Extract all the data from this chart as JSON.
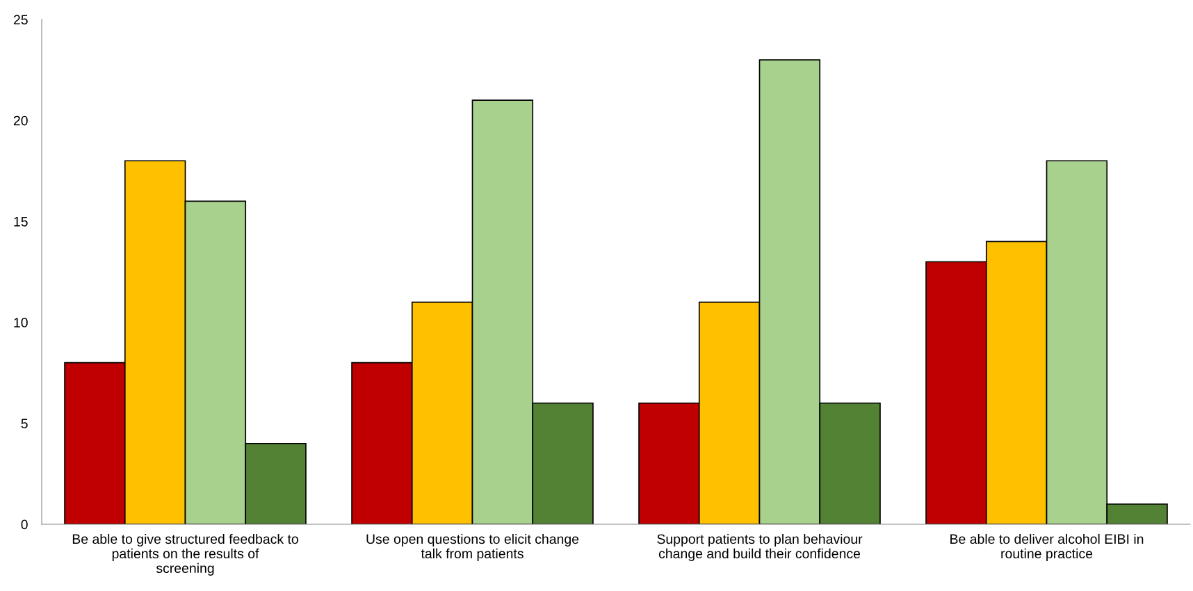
{
  "chart_data": {
    "type": "bar",
    "categories": [
      "Be able to give structured feedback to\npatients on the results of\nscreening",
      "Use open questions to elicit change\ntalk from patients",
      "Support patients to plan behaviour\nchange and build their confidence",
      "Be able to deliver alcohol EIBI in\nroutine practice"
    ],
    "series": [
      {
        "color": "#c00000",
        "values": [
          8,
          8,
          6,
          13
        ]
      },
      {
        "color": "#ffc000",
        "values": [
          18,
          11,
          11,
          14
        ]
      },
      {
        "color": "#a9d18e",
        "values": [
          16,
          21,
          23,
          18
        ]
      },
      {
        "color": "#548235",
        "values": [
          4,
          6,
          6,
          1
        ]
      }
    ],
    "ylim": [
      0,
      25
    ],
    "yticks": [
      0,
      5,
      10,
      15,
      20,
      25
    ],
    "grid": false,
    "legend": false
  }
}
